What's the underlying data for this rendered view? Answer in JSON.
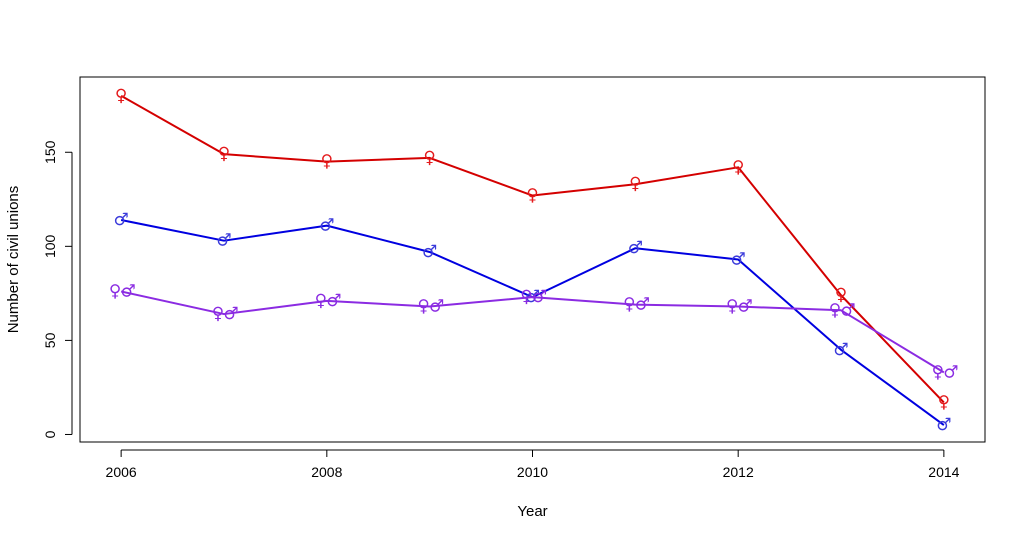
{
  "chart_data": {
    "type": "line",
    "title": "",
    "xlabel": "Year",
    "ylabel": "Number of civil unions",
    "x": [
      2006,
      2007,
      2008,
      2009,
      2010,
      2011,
      2012,
      2013,
      2014
    ],
    "xlim": [
      2005.6,
      2014.4
    ],
    "ylim": [
      -4,
      190
    ],
    "x_ticks": [
      2006,
      2008,
      2010,
      2012,
      2014
    ],
    "y_ticks": [
      0,
      50,
      100,
      150
    ],
    "grid": false,
    "legend": "none",
    "series": [
      {
        "marker": "female-female",
        "color": "#e41a1c",
        "line_color": "#d40000",
        "values": [
          180,
          149,
          145,
          147,
          127,
          133,
          142,
          74,
          17
        ]
      },
      {
        "marker": "male-male",
        "color": "#3b3bdb",
        "line_color": "#0000e0",
        "values": [
          114,
          103,
          111,
          97,
          73,
          99,
          93,
          45,
          5
        ]
      },
      {
        "marker": "female-male",
        "color": "#8a2be2",
        "line_color": "#8b2be2",
        "values": [
          76,
          64,
          71,
          68,
          73,
          69,
          68,
          66,
          33
        ]
      }
    ],
    "glyphs": {
      "female": "♀",
      "male": "♂"
    }
  }
}
